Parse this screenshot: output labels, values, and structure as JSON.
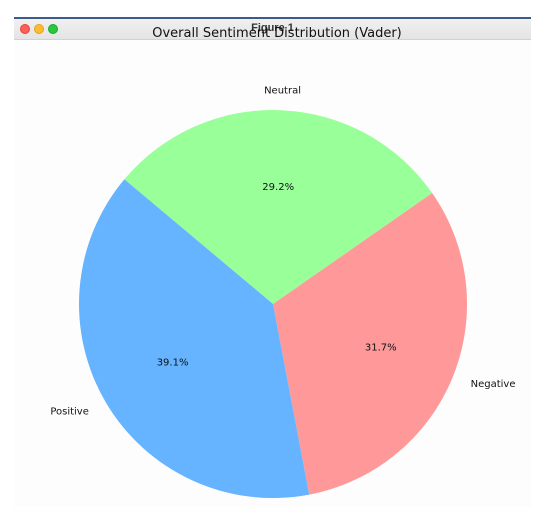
{
  "window": {
    "title": "Figure 1"
  },
  "chart_data": {
    "type": "pie",
    "title": "Overall Sentiment Distribution (Vader)",
    "labels": [
      "Neutral",
      "Negative",
      "Positive"
    ],
    "values": [
      29.2,
      31.7,
      39.1
    ],
    "percent_labels": [
      "29.2%",
      "31.7%",
      "39.1%"
    ],
    "colors": [
      "#99ff99",
      "#ff9999",
      "#66b3ff"
    ],
    "start_angle_deg": 140,
    "direction": "clockwise"
  }
}
